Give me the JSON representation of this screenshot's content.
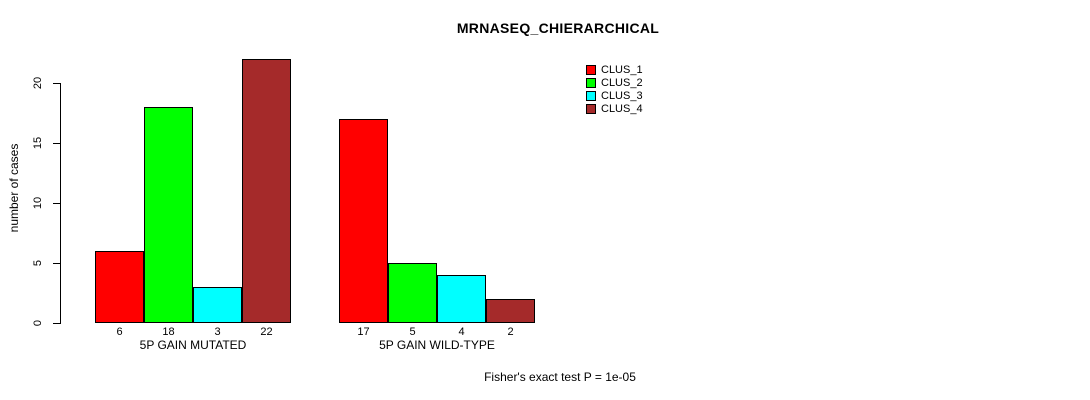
{
  "chart_data": {
    "type": "bar",
    "title": "MRNASEQ_CHIERARCHICAL",
    "xlabel": "",
    "ylabel": "number of cases",
    "categories": [
      "5P GAIN MUTATED",
      "5P GAIN WILD-TYPE"
    ],
    "series": [
      {
        "name": "CLUS_1",
        "color": "#ff0000",
        "values": [
          6,
          17
        ]
      },
      {
        "name": "CLUS_2",
        "color": "#00ff00",
        "values": [
          18,
          5
        ]
      },
      {
        "name": "CLUS_3",
        "color": "#00ffff",
        "values": [
          3,
          4
        ]
      },
      {
        "name": "CLUS_4",
        "color": "#a52a2a",
        "values": [
          22,
          2
        ]
      }
    ],
    "bar_value_labels": [
      [
        6,
        18,
        3,
        22
      ],
      [
        17,
        5,
        4,
        2
      ]
    ],
    "y_ticks": [
      0,
      5,
      10,
      15,
      20
    ],
    "ylim": [
      0,
      22
    ],
    "grid": false,
    "legend_position": "top-right",
    "legend_entries": [
      "CLUS_1",
      "CLUS_2",
      "CLUS_3",
      "CLUS_4"
    ],
    "annotation": "Fisher's exact test P = 1e-05",
    "bar_border_color": "#000000",
    "axis_color": "#000000"
  }
}
